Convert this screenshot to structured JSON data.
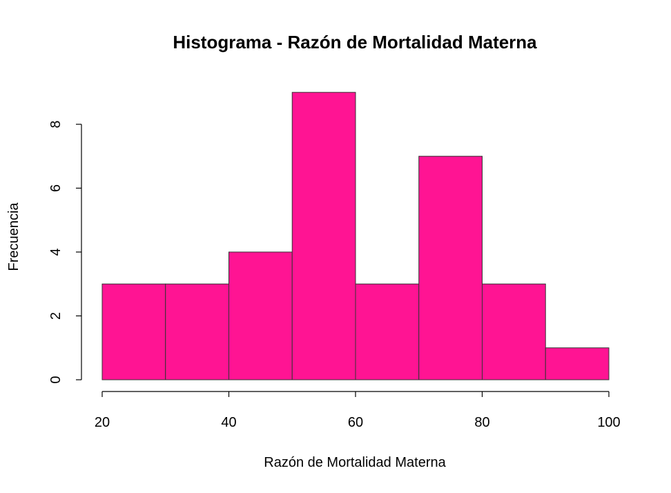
{
  "chart_data": {
    "type": "bar",
    "subtype": "histogram",
    "title": "Histograma - Razón de Mortalidad Materna",
    "xlabel": "Razón de Mortalidad Materna",
    "ylabel": "Frecuencia",
    "bins": [
      {
        "from": 20,
        "to": 30,
        "count": 3
      },
      {
        "from": 30,
        "to": 40,
        "count": 3
      },
      {
        "from": 40,
        "to": 50,
        "count": 4
      },
      {
        "from": 50,
        "to": 60,
        "count": 9
      },
      {
        "from": 60,
        "to": 70,
        "count": 3
      },
      {
        "from": 70,
        "to": 80,
        "count": 7
      },
      {
        "from": 80,
        "to": 90,
        "count": 3
      },
      {
        "from": 90,
        "to": 100,
        "count": 1
      }
    ],
    "xlim": [
      20,
      100
    ],
    "ylim": [
      0,
      9
    ],
    "xticks": [
      "20",
      "40",
      "60",
      "80",
      "100"
    ],
    "yticks": [
      "0",
      "2",
      "4",
      "6",
      "8"
    ],
    "bar_color": "#FF1493",
    "bar_border_color": "#333333",
    "grid": false,
    "legend": false
  }
}
